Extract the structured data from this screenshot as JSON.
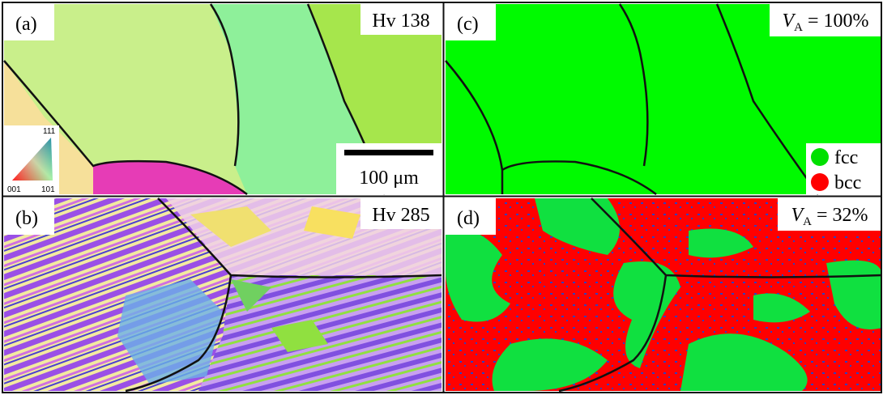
{
  "panels": [
    {
      "label": "(a)",
      "annotation": "Hv 138",
      "scale_bar": "100 μm",
      "ipf_legend": {
        "top": "111",
        "left": "001",
        "right": "101"
      }
    },
    {
      "label": "(b)",
      "annotation": "Hv 285"
    },
    {
      "label": "(c)",
      "annotation": {
        "symbol": "V",
        "subscript": "A",
        "text": " = 100%"
      },
      "legend": [
        "fcc",
        "bcc"
      ]
    },
    {
      "label": "(d)",
      "annotation": {
        "symbol": "V",
        "subscript": "A",
        "text": " = 32%"
      }
    }
  ]
}
